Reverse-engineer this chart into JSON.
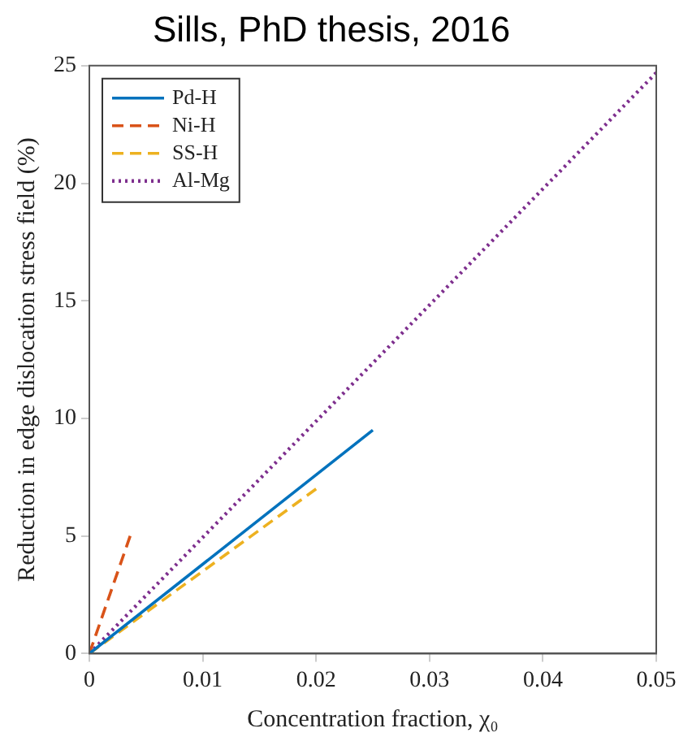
{
  "chart_data": {
    "type": "line",
    "title": "Sills, PhD thesis, 2016",
    "xlabel": "Concentration fraction, χ₀",
    "ylabel": "Reduction in edge dislocation stress field (%)",
    "xlim": [
      0,
      0.05
    ],
    "xticks": [
      0,
      0.01,
      0.02,
      0.03,
      0.04,
      0.05
    ],
    "ylim": [
      0,
      25
    ],
    "yticks": [
      0,
      5,
      10,
      15,
      20,
      25
    ],
    "grid": false,
    "legend": "top left",
    "marker": "none",
    "series": [
      {
        "name": "Pd-H",
        "color": "#0072bd",
        "line_style": "solid",
        "x": [
          0,
          0.025
        ],
        "values": [
          0,
          9.5
        ]
      },
      {
        "name": "Ni-H",
        "color": "#d95319",
        "line_style": "dashed",
        "x": [
          0,
          0.0036
        ],
        "values": [
          0,
          5
        ]
      },
      {
        "name": "SS-H",
        "color": "#edb120",
        "line_style": "dashed",
        "x": [
          0,
          0.02
        ],
        "values": [
          0,
          7
        ]
      },
      {
        "name": "Al-Mg",
        "color": "#7e2f8e",
        "line_style": "dotted",
        "x": [
          0,
          0.05
        ],
        "values": [
          0,
          24.7
        ]
      }
    ]
  }
}
